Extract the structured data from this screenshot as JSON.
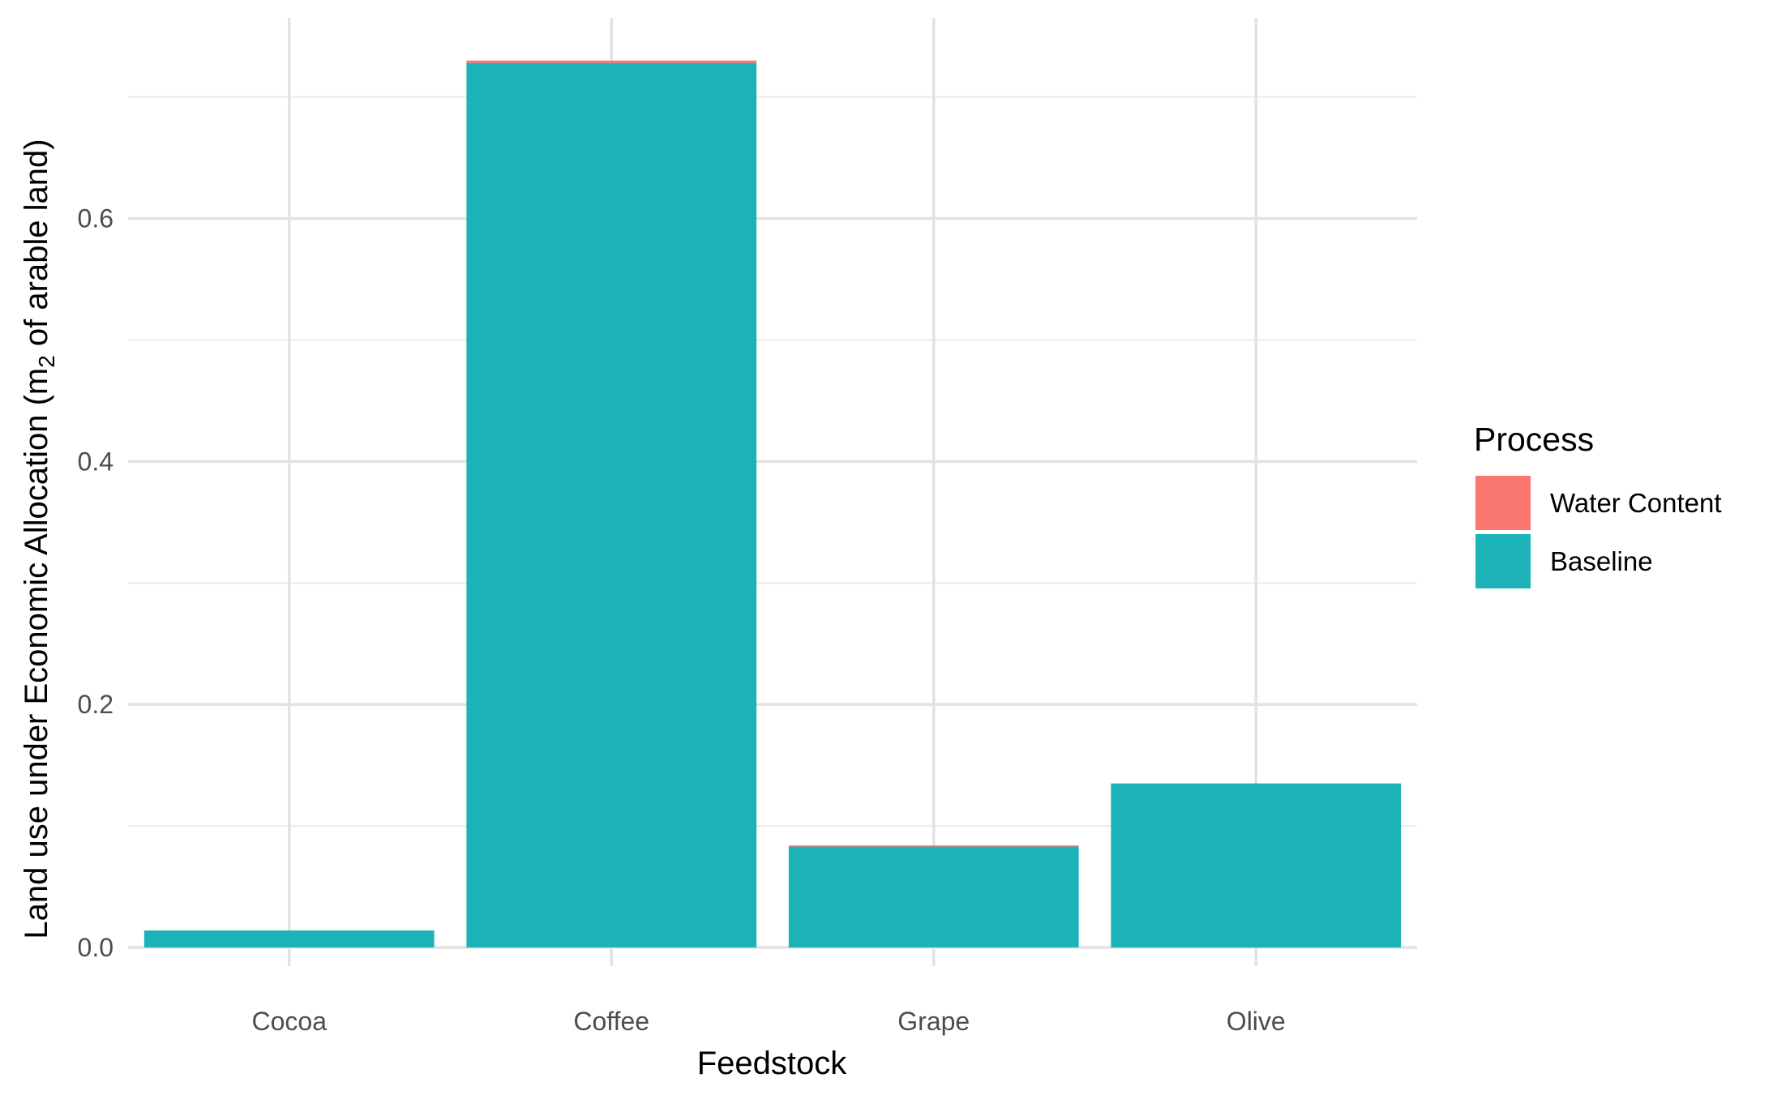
{
  "chart_data": {
    "type": "bar",
    "stacked": true,
    "categories": [
      "Cocoa",
      "Coffee",
      "Grape",
      "Olive"
    ],
    "series": [
      {
        "name": "Water Content",
        "color": "#F8766D",
        "values": [
          0.0,
          0.002,
          0.001,
          0.0
        ]
      },
      {
        "name": "Baseline",
        "color": "#1BB3B8",
        "values": [
          0.014,
          0.728,
          0.083,
          0.135
        ]
      }
    ],
    "xlabel": "Feedstock",
    "ylabel": {
      "prefix": "Land use under Economic Allocation (m",
      "subscript": "2",
      "suffix": " of arable land)"
    },
    "yticks": [
      "0.0",
      "0.2",
      "0.4",
      "0.6"
    ],
    "ylim": [
      0,
      0.73
    ],
    "grid": true,
    "legend": {
      "title": "Process",
      "position": "right"
    }
  }
}
